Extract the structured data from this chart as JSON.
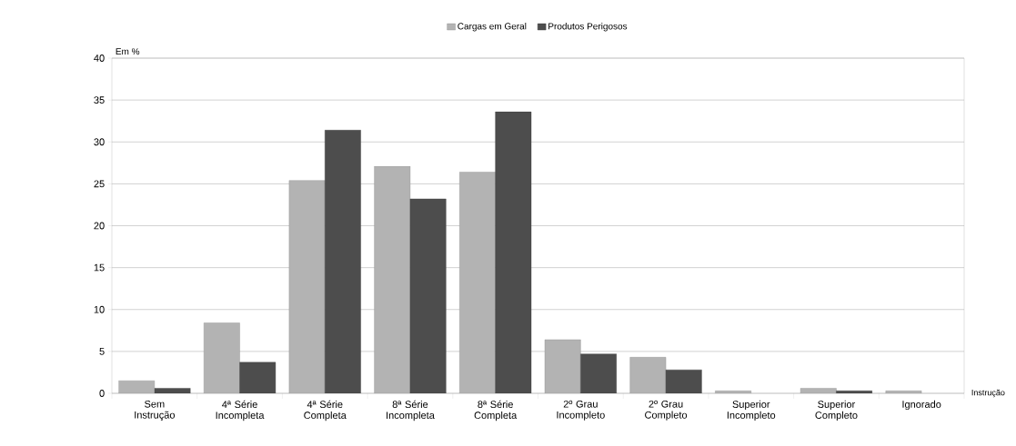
{
  "chart_data": {
    "type": "bar",
    "ylabel": "Em %",
    "xlabel": "Instrução",
    "categories": [
      "Sem Instrução",
      "4ª Série Incompleta",
      "4ª Série Completa",
      "8ª Série Incompleta",
      "8ª Série Completa",
      "2º Grau Incompleto",
      "2º Grau Completo",
      "Superior Incompleto",
      "Superior Completo",
      "Ignorado"
    ],
    "series": [
      {
        "name": "Cargas em Geral",
        "color": "#b3b3b3",
        "values": [
          1.5,
          8.4,
          25.4,
          27.1,
          26.4,
          6.4,
          4.3,
          0.3,
          0.6,
          0.3
        ]
      },
      {
        "name": "Produtos Perigosos",
        "color": "#4d4d4d",
        "values": [
          0.6,
          3.7,
          31.4,
          23.2,
          33.6,
          4.7,
          2.8,
          null,
          0.3,
          null
        ]
      }
    ],
    "ylim": [
      0,
      40
    ],
    "yticks": [
      0,
      5,
      10,
      15,
      20,
      25,
      30,
      35,
      40
    ],
    "grid": "y",
    "legend": "top"
  }
}
